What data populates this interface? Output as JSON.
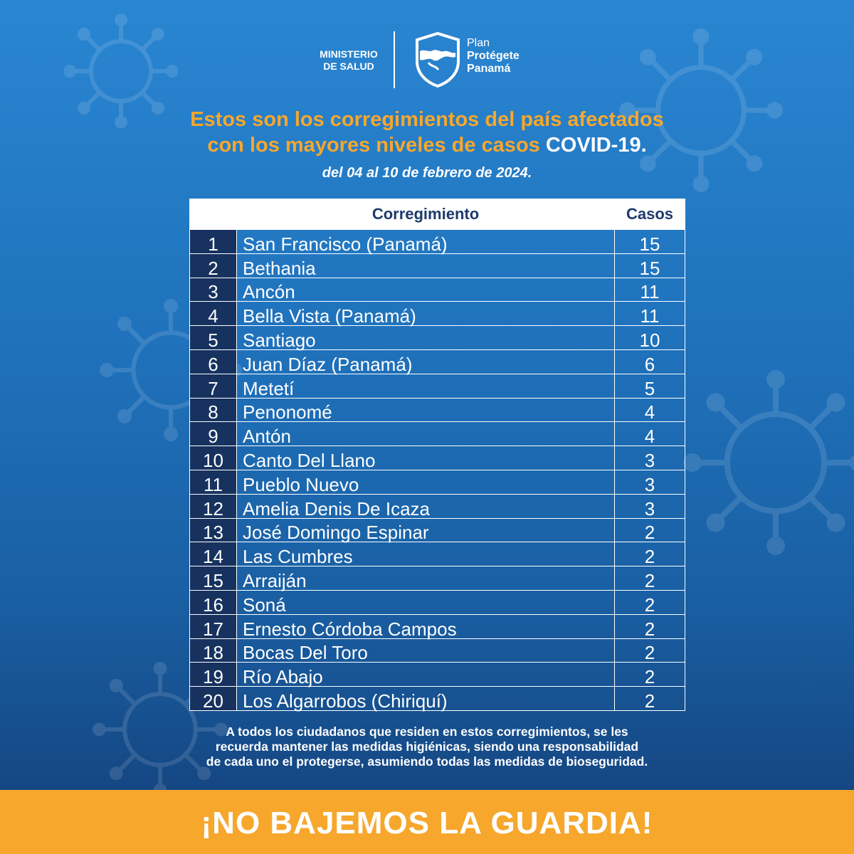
{
  "header": {
    "ministerio_line1": "MINISTERIO",
    "ministerio_line2": "DE SALUD",
    "plan_line1": "Plan",
    "plan_line2": "Protégete",
    "plan_line3": "Panamá",
    "logo_icon": "shield-panama-map-icon"
  },
  "title": {
    "line1": "Estos son los corregimientos del país afectados",
    "line2_prefix": "con los mayores niveles de casos ",
    "line2_highlight": "COVID-19."
  },
  "subtitle": "del 04 al 10 de febrero de 2024.",
  "table": {
    "headers": {
      "number": "",
      "corregimiento": "Corregimiento",
      "casos": "Casos"
    },
    "rows": [
      {
        "n": "1",
        "name": "San Francisco (Panamá)",
        "cases": "15"
      },
      {
        "n": "2",
        "name": "Bethania",
        "cases": "15"
      },
      {
        "n": "3",
        "name": "Ancón",
        "cases": "11"
      },
      {
        "n": "4",
        "name": "Bella Vista (Panamá)",
        "cases": "11"
      },
      {
        "n": "5",
        "name": "Santiago",
        "cases": "10"
      },
      {
        "n": "6",
        "name": "Juan Díaz (Panamá)",
        "cases": "6"
      },
      {
        "n": "7",
        "name": "Metetí",
        "cases": "5"
      },
      {
        "n": "8",
        "name": "Penonomé",
        "cases": "4"
      },
      {
        "n": "9",
        "name": "Antón",
        "cases": "4"
      },
      {
        "n": "10",
        "name": "Canto Del Llano",
        "cases": "3"
      },
      {
        "n": "11",
        "name": "Pueblo Nuevo",
        "cases": "3"
      },
      {
        "n": "12",
        "name": "Amelia Denis De Icaza",
        "cases": "3"
      },
      {
        "n": "13",
        "name": "José Domingo Espinar",
        "cases": "2"
      },
      {
        "n": "14",
        "name": "Las Cumbres",
        "cases": "2"
      },
      {
        "n": "15",
        "name": "Arraiján",
        "cases": "2"
      },
      {
        "n": "16",
        "name": "Soná",
        "cases": "2"
      },
      {
        "n": "17",
        "name": "Ernesto Córdoba Campos",
        "cases": "2"
      },
      {
        "n": "18",
        "name": "Bocas Del Toro",
        "cases": "2"
      },
      {
        "n": "19",
        "name": "Río Abajo",
        "cases": "2"
      },
      {
        "n": "20",
        "name": "Los Algarrobos (Chiriquí)",
        "cases": "2"
      }
    ]
  },
  "note": {
    "line1": "A todos los ciudadanos que residen en estos corregimientos, se les",
    "line2": "recuerda mantener las medidas higiénicas, siendo una responsabilidad",
    "line3": "de cada uno el protegerse, asumiendo todas  las medidas de bioseguridad."
  },
  "banner": "¡NO BAJEMOS LA GUARDIA!",
  "colors": {
    "background": "#1e6fb8",
    "accent_orange": "#f6a72c",
    "table_number_cell": "#17325f",
    "header_text": "#1d3a6b"
  }
}
